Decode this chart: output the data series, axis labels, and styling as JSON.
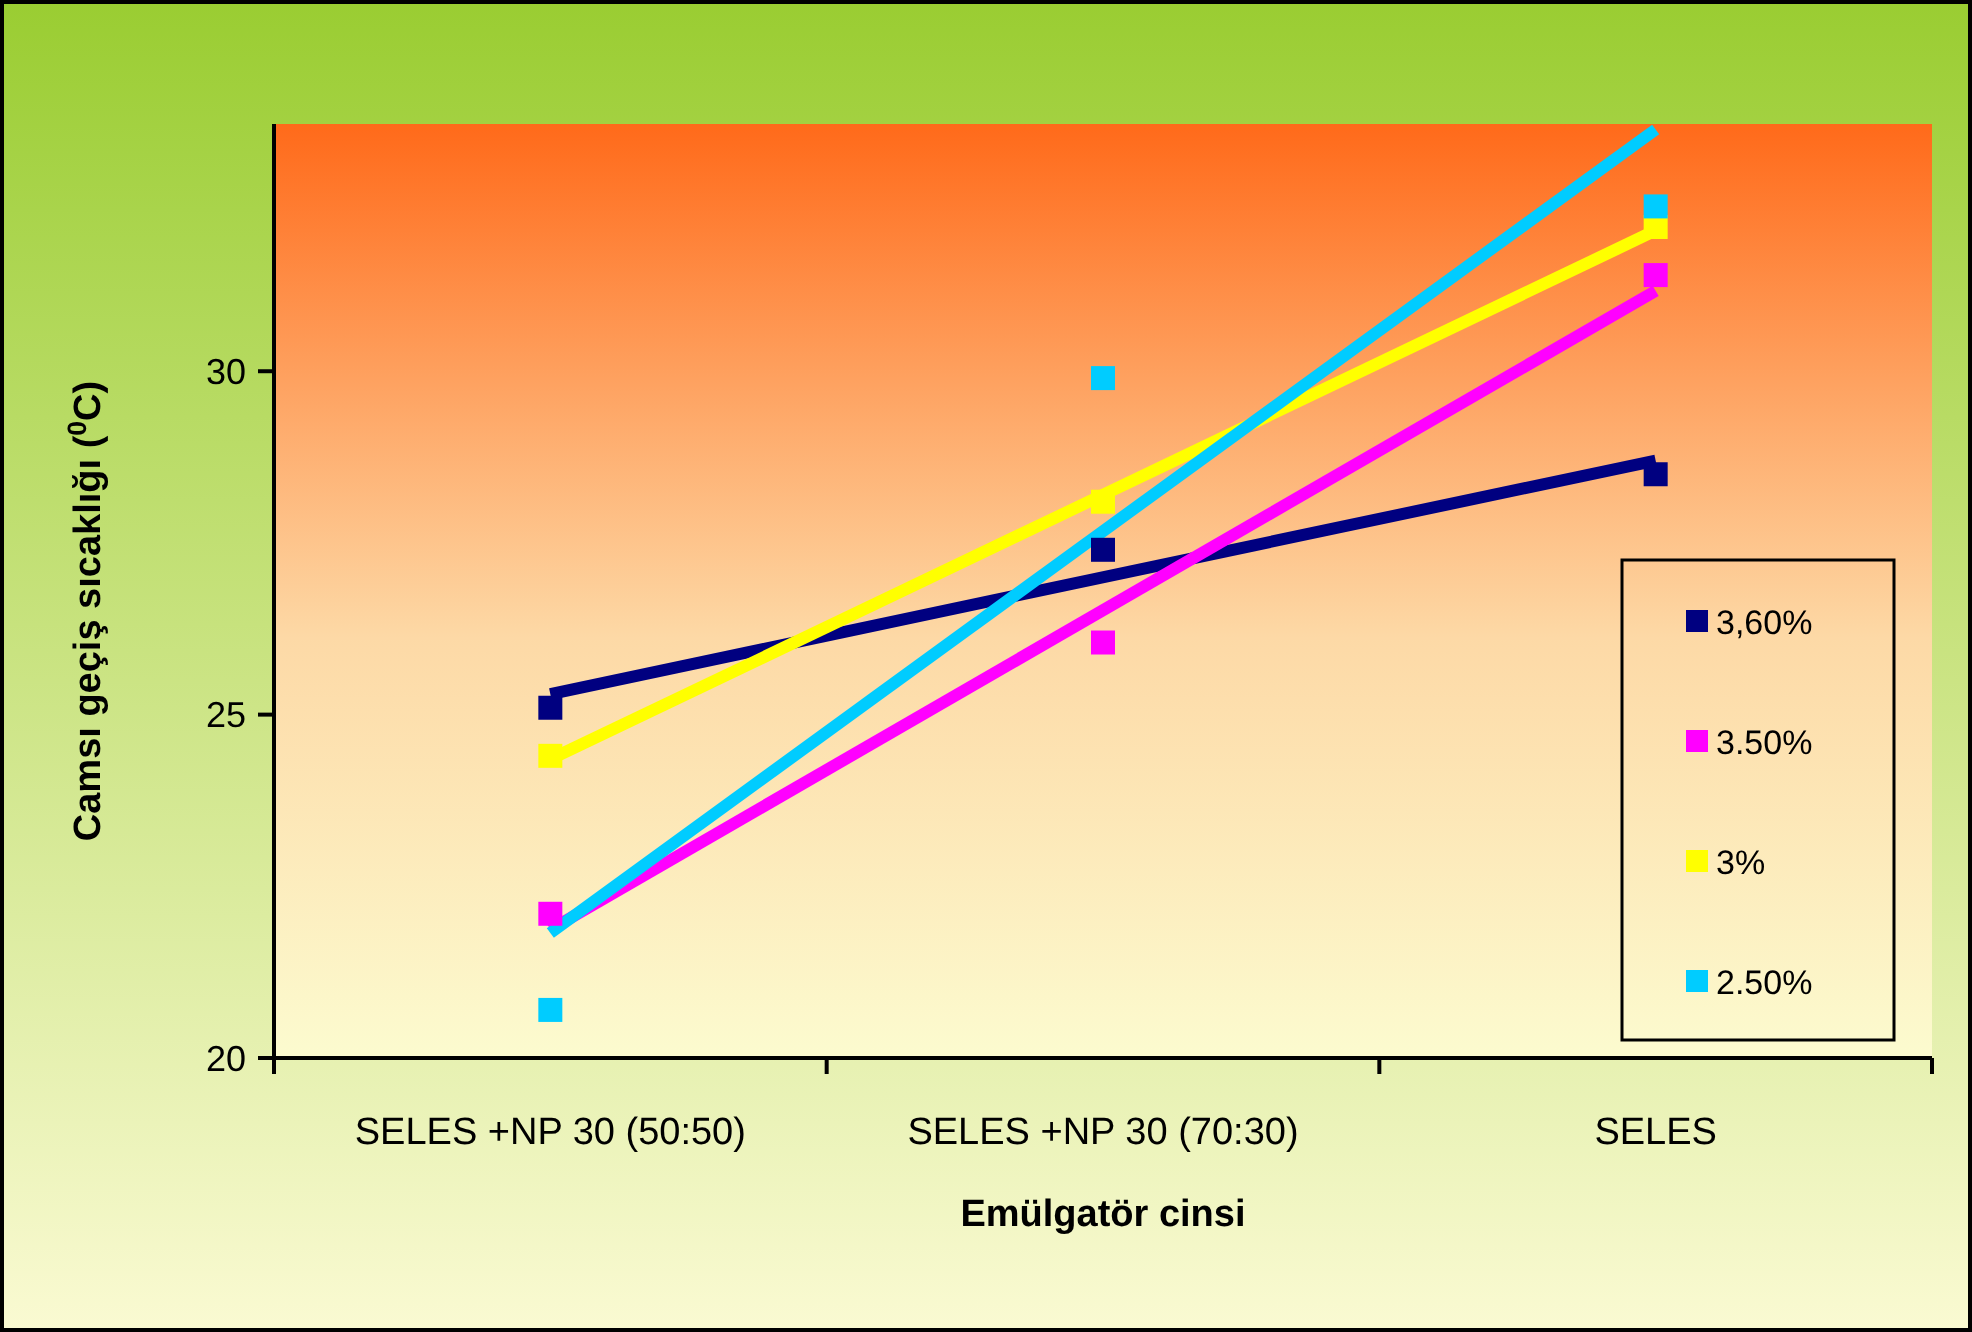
{
  "chart_data": {
    "type": "scatter",
    "xlabel": "Emülgatör cinsi",
    "ylabel": "Camsı geçiş sıcaklığı ($^{0}$C)",
    "categories": [
      "SELES +NP 30 (50:50)",
      "SELES +NP 30 (70:30)",
      "SELES"
    ],
    "ylim": [
      20,
      33.6
    ],
    "yticks": [
      20,
      25,
      30
    ],
    "marker": "square",
    "legend": "right",
    "grid": false,
    "series": [
      {
        "name": "3,60%",
        "color": "#000080",
        "values": [
          25.1,
          27.4,
          28.5
        ]
      },
      {
        "name": "3.50%",
        "color": "#ff00ff",
        "values": [
          22.1,
          26.05,
          31.4
        ]
      },
      {
        "name": "3%",
        "color": "#ffff00",
        "values": [
          24.4,
          28.1,
          32.1
        ]
      },
      {
        "name": "2.50%",
        "color": "#00ccff",
        "values": [
          20.7,
          29.9,
          32.4
        ]
      },
      {
        "type": "line",
        "marker": "none",
        "color": "#000080",
        "x": [
          "SELES +NP 30 (50:50)",
          "SELES"
        ],
        "values": [
          25.3,
          28.7
        ]
      },
      {
        "type": "line",
        "marker": "none",
        "color": "#ff00ff",
        "x": [
          "SELES +NP 30 (50:50)",
          "SELES"
        ],
        "values": [
          21.87,
          31.17
        ]
      },
      {
        "type": "line",
        "marker": "none",
        "color": "#ffff00",
        "x": [
          "SELES +NP 30 (50:50)",
          "SELES"
        ],
        "values": [
          24.35,
          32.05
        ]
      },
      {
        "type": "line",
        "marker": "none",
        "color": "#00ccff",
        "x": [
          "SELES +NP 30 (50:50)",
          "SELES"
        ],
        "values": [
          21.82,
          33.52
        ]
      }
    ]
  }
}
